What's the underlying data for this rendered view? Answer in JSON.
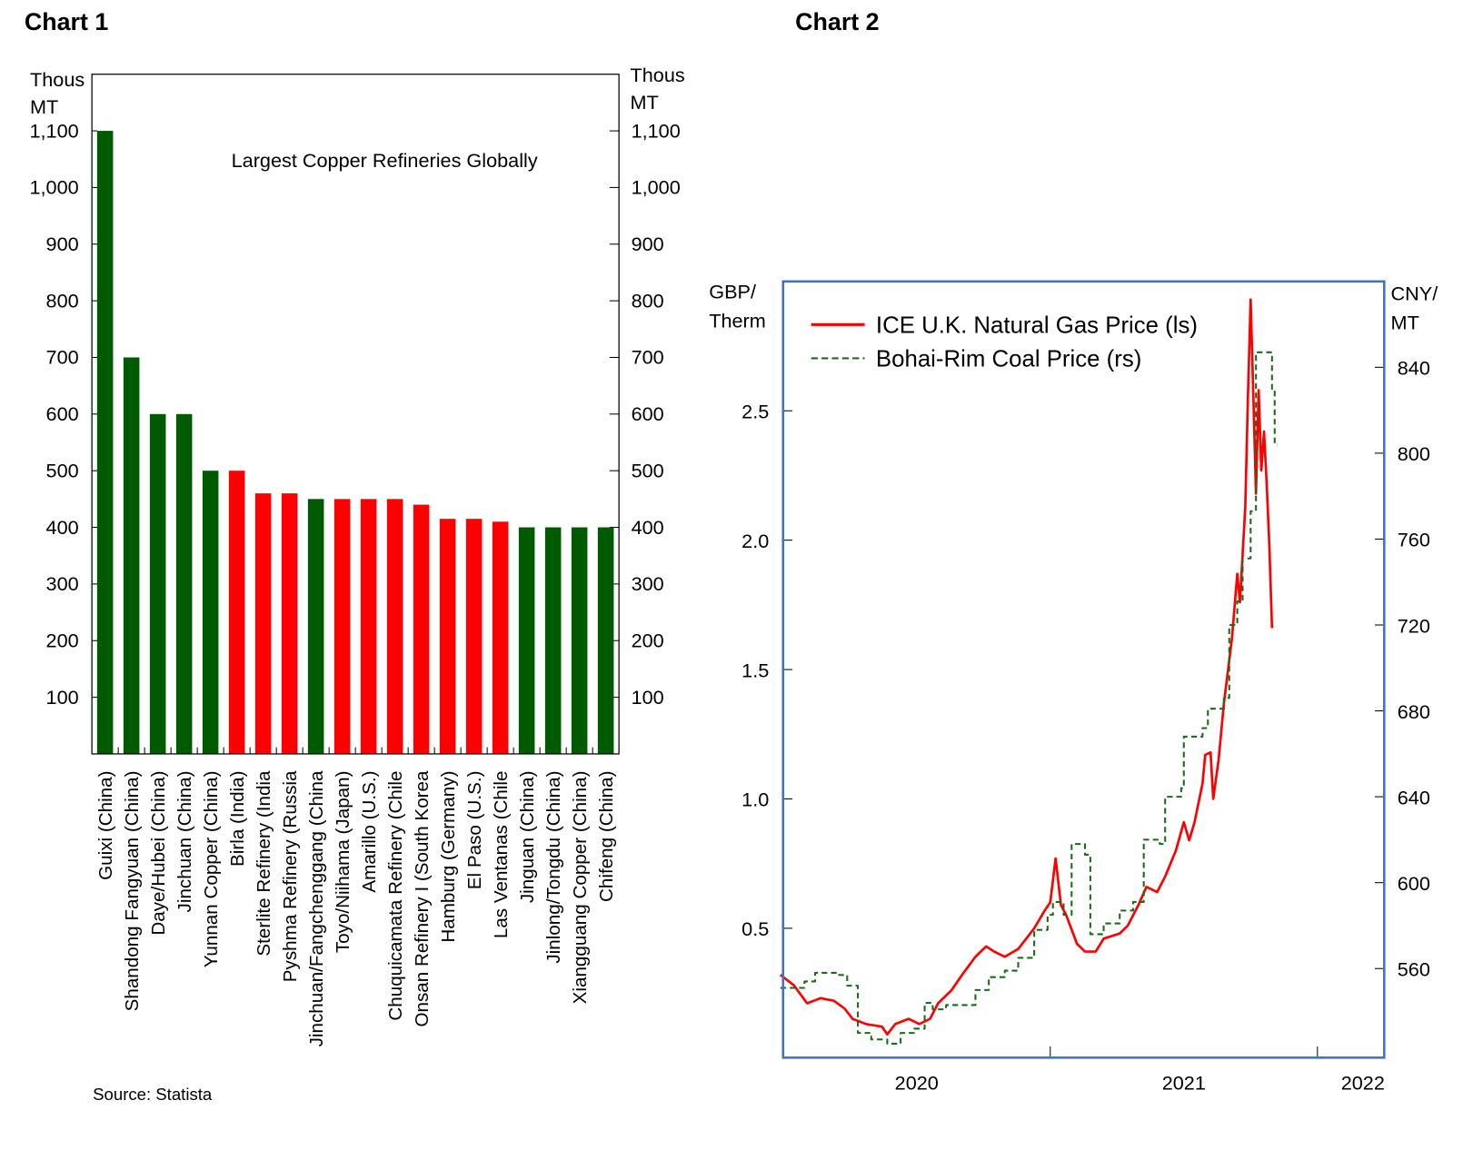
{
  "headers": {
    "chart1": "Chart 1",
    "chart2": "Chart 2"
  },
  "colors": {
    "green": "#005a00",
    "red": "#ff0000",
    "frame2": "#4472c4",
    "coal": "#1a6b1a"
  },
  "chart_data": [
    {
      "type": "bar",
      "title": "Largest Copper Refineries Globally",
      "ylabel_left": [
        "Thous",
        "MT"
      ],
      "ylabel_right": [
        "Thous",
        "MT"
      ],
      "source": "Source: Statista",
      "ylim": [
        0,
        1200
      ],
      "yticks": [
        100,
        200,
        300,
        400,
        500,
        600,
        700,
        800,
        900,
        1000,
        1100
      ],
      "ytick_labels": [
        "100",
        "200",
        "300",
        "400",
        "500",
        "600",
        "700",
        "800",
        "900",
        "1,000",
        "1,100"
      ],
      "categories": [
        "Guixi (China)",
        "Shandong Fangyuan (China)",
        "Daye/Hubei (China)",
        "Jinchuan (China)",
        "Yunnan Copper (China)",
        "Birla (India)",
        "Sterlite Refinery (India",
        "Pyshma Refinery (Russia",
        "Jinchuan/Fangchenggang (China",
        "Toyo/Niihama (Japan)",
        "Amarillo (U.S.)",
        "Chuquicamata Refinery (Chile",
        "Onsan Refinery I (South Korea",
        "Hamburg (Germany)",
        "El Paso (U.S.)",
        "Las Ventanas (Chile",
        "Jinguan (China)",
        "Jinlong/Tongdu (China)",
        "Xiangguang Copper (China)",
        "Chifeng (China)"
      ],
      "values": [
        1100,
        700,
        600,
        600,
        500,
        500,
        460,
        460,
        450,
        450,
        450,
        450,
        440,
        415,
        415,
        410,
        400,
        400,
        400,
        400
      ],
      "bar_colors": [
        "green",
        "green",
        "green",
        "green",
        "green",
        "red",
        "red",
        "red",
        "green",
        "red",
        "red",
        "red",
        "red",
        "red",
        "red",
        "red",
        "green",
        "green",
        "green",
        "green"
      ]
    },
    {
      "type": "line",
      "ylabel_left": [
        "GBP/",
        "Therm"
      ],
      "ylabel_right": [
        "CNY/",
        "MT"
      ],
      "xlim": [
        2020.0,
        2022.25
      ],
      "x_ticks": [
        2021,
        2022
      ],
      "x_labels": [
        {
          "text": "2020",
          "at": 2020.5
        },
        {
          "text": "2021",
          "at": 2021.5
        },
        {
          "text": "2022",
          "at": 2022.17
        }
      ],
      "ylim_left": [
        0,
        3.0
      ],
      "yticks_left": [
        0.5,
        1.0,
        1.5,
        2.0,
        2.5
      ],
      "ytick_labels_left": [
        "0.5",
        "1.0",
        "1.5",
        "2.0",
        "2.5"
      ],
      "ylim_right": [
        518.5,
        880
      ],
      "yticks_right": [
        560,
        600,
        640,
        680,
        720,
        760,
        800,
        840
      ],
      "ytick_labels_right": [
        "560",
        "600",
        "640",
        "680",
        "720",
        "760",
        "800",
        "840"
      ],
      "legend_position": "top-left",
      "series": [
        {
          "name": "ICE U.K. Natural Gas Price (ls)",
          "axis": "left",
          "style": "solid",
          "color": "#ff0000",
          "x": [
            2019.99,
            2020.04,
            2020.09,
            2020.14,
            2020.19,
            2020.23,
            2020.26,
            2020.31,
            2020.37,
            2020.39,
            2020.42,
            2020.47,
            2020.51,
            2020.55,
            2020.58,
            2020.63,
            2020.67,
            2020.72,
            2020.76,
            2020.79,
            2020.83,
            2020.88,
            2020.94,
            2020.98,
            2021.0,
            2021.02,
            2021.04,
            2021.06,
            2021.1,
            2021.13,
            2021.17,
            2021.2,
            2021.26,
            2021.29,
            2021.33,
            2021.36,
            2021.4,
            2021.43,
            2021.47,
            2021.5,
            2021.52,
            2021.54,
            2021.57,
            2021.58,
            2021.6,
            2021.61,
            2021.63,
            2021.65,
            2021.68,
            2021.7,
            2021.71,
            2021.73,
            2021.74,
            2021.75,
            2021.76,
            2021.77,
            2021.78,
            2021.79,
            2021.8,
            2021.81,
            2021.82,
            2021.83
          ],
          "y": [
            0.32,
            0.28,
            0.21,
            0.23,
            0.22,
            0.19,
            0.15,
            0.13,
            0.12,
            0.09,
            0.13,
            0.15,
            0.13,
            0.15,
            0.21,
            0.26,
            0.32,
            0.39,
            0.43,
            0.41,
            0.39,
            0.42,
            0.5,
            0.57,
            0.6,
            0.77,
            0.59,
            0.55,
            0.44,
            0.41,
            0.41,
            0.46,
            0.48,
            0.51,
            0.59,
            0.66,
            0.64,
            0.7,
            0.8,
            0.91,
            0.84,
            0.91,
            1.06,
            1.17,
            1.18,
            1.0,
            1.15,
            1.37,
            1.62,
            1.87,
            1.76,
            2.13,
            2.56,
            2.93,
            2.56,
            2.18,
            2.58,
            2.27,
            2.42,
            2.22,
            1.98,
            1.66
          ]
        },
        {
          "name": "Bohai-Rim Coal Price (rs)",
          "axis": "right",
          "style": "dashed",
          "color": "#1a6b1a",
          "x": [
            2019.99,
            2020.08,
            2020.12,
            2020.21,
            2020.24,
            2020.28,
            2020.33,
            2020.39,
            2020.44,
            2020.49,
            2020.53,
            2020.56,
            2020.61,
            2020.66,
            2020.72,
            2020.77,
            2020.83,
            2020.88,
            2020.94,
            2020.99,
            2021.01,
            2021.05,
            2021.08,
            2021.13,
            2021.15,
            2021.2,
            2021.26,
            2021.31,
            2021.35,
            2021.41,
            2021.43,
            2021.49,
            2021.5,
            2021.57,
            2021.59,
            2021.65,
            2021.67,
            2021.7,
            2021.72,
            2021.75,
            2021.77,
            2021.82,
            2021.83,
            2021.84,
            2021.85
          ],
          "y": [
            551,
            554,
            558,
            557,
            552,
            530,
            527,
            525,
            530,
            532,
            544,
            541,
            543,
            543,
            550,
            556,
            559,
            565,
            578,
            585,
            591,
            585,
            618,
            613,
            576,
            581,
            587,
            591,
            620,
            618,
            640,
            644,
            668,
            672,
            681,
            686,
            720,
            731,
            751,
            773,
            847,
            847,
            830,
            804,
            804
          ]
        }
      ]
    }
  ]
}
